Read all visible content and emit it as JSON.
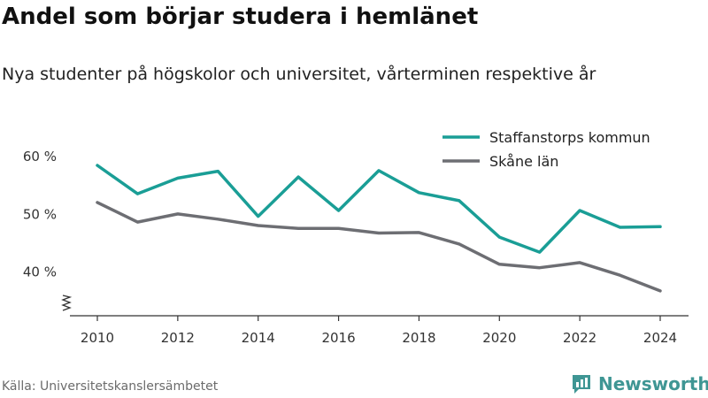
{
  "header": {
    "title": "Andel som börjar studera i hemlänet",
    "subtitle": "Nya studenter på högskolor och universitet, vårterminen respektive år"
  },
  "footer": {
    "source": "Källa: Universitetskanslersämbetet",
    "brand": "Newsworthy"
  },
  "colors": {
    "staffanstorp": "#1a9e96",
    "skane": "#6d6e73",
    "axis": "#333333",
    "brand": "#3f9694"
  },
  "chart_data": {
    "type": "line",
    "x": [
      2010,
      2011,
      2012,
      2013,
      2014,
      2015,
      2016,
      2017,
      2018,
      2019,
      2020,
      2021,
      2022,
      2023,
      2024
    ],
    "series": [
      {
        "name": "Staffanstorps kommun",
        "color": "#1a9e96",
        "values": [
          58.3,
          53.4,
          56.1,
          57.3,
          49.5,
          56.3,
          50.5,
          57.4,
          53.6,
          52.2,
          45.9,
          43.3,
          50.5,
          47.6,
          47.7
        ]
      },
      {
        "name": "Skåne län",
        "color": "#6d6e73",
        "values": [
          51.9,
          48.5,
          49.9,
          49.0,
          47.9,
          47.4,
          47.4,
          46.6,
          46.7,
          44.7,
          41.2,
          40.6,
          41.5,
          39.3,
          36.6
        ]
      }
    ],
    "x_ticks": [
      2010,
      2012,
      2014,
      2016,
      2018,
      2020,
      2022,
      2024
    ],
    "x_tick_labels": [
      "2010",
      "2012",
      "2014",
      "2016",
      "2018",
      "2020",
      "2022",
      "2024"
    ],
    "y_ticks": [
      40,
      50,
      60
    ],
    "y_tick_labels": [
      "40 %",
      "50 %",
      "60 %"
    ],
    "ylim": [
      32.3,
      63.2
    ],
    "y_axis_break": true,
    "grid": false,
    "legend_position": "top-right"
  }
}
